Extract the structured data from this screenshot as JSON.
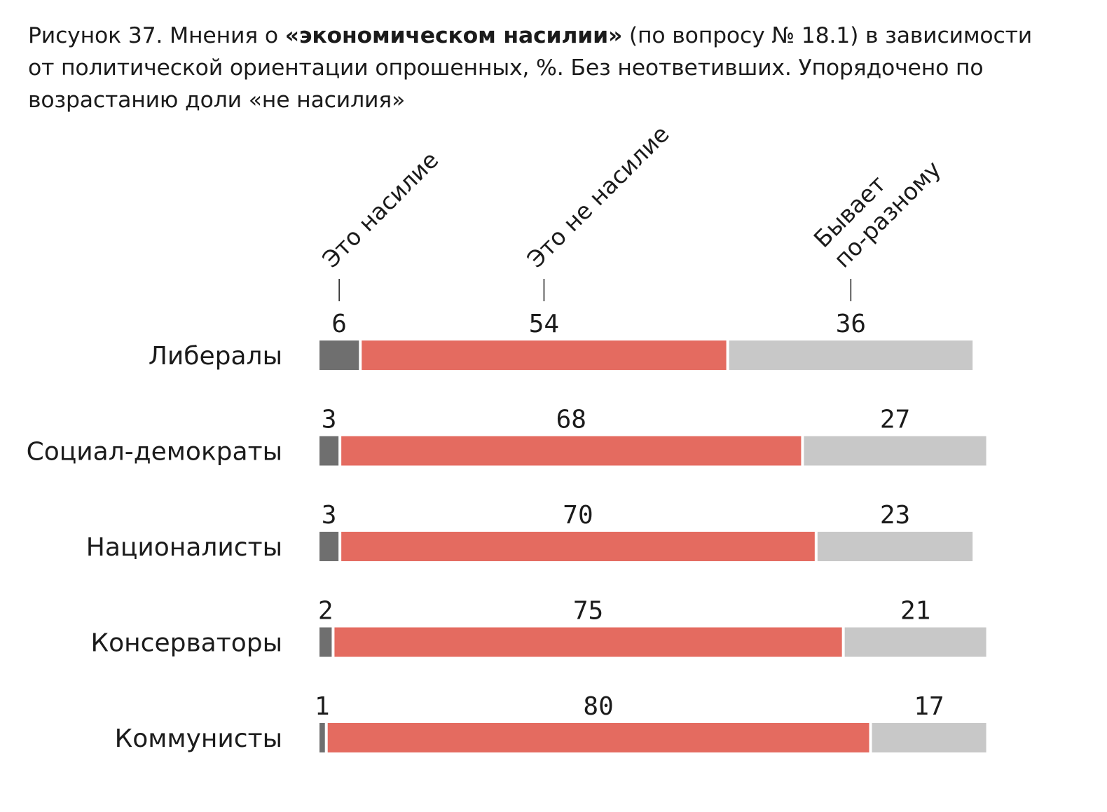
{
  "title": {
    "text_before": "Рисунок 37. Мнения о ",
    "text_bold": "«экономическом насилии»",
    "text_after": " (по вопросу № 18.1) в зависимости от политической ориентации опрошенных, %. Без неответивших. Упорядочено по возрастанию доли «не насилия»"
  },
  "colors": {
    "violence": "#6f6f6f",
    "not_violence": "#e46b60",
    "varies": "#c8c8c8"
  },
  "chart_data": {
    "type": "bar",
    "stacked": true,
    "orientation": "horizontal",
    "title": "Рисунок 37. Мнения о «экономическом насилии» (по вопросу № 18.1) в зависимости от политической ориентации опрошенных, %. Без неответивших. Упорядочено по возрастанию доли «не насилия»",
    "categories": [
      "Либералы",
      "Социал-демократы",
      "Националисты",
      "Консерваторы",
      "Коммунисты"
    ],
    "series": [
      {
        "name": "Это насилие",
        "color": "#6f6f6f",
        "values": [
          6,
          3,
          3,
          2,
          1
        ]
      },
      {
        "name": "Это не насилие",
        "color": "#e46b60",
        "values": [
          54,
          68,
          70,
          75,
          80
        ]
      },
      {
        "name": "Бывает по-разному",
        "label_lines": [
          "Бывает",
          "по-разному"
        ],
        "color": "#c8c8c8",
        "values": [
          36,
          27,
          23,
          21,
          17
        ]
      }
    ],
    "xlabel": "",
    "ylabel": "",
    "xlim": [
      0,
      100
    ],
    "grid": false,
    "legend": "top, rotated labels above the first bar"
  }
}
